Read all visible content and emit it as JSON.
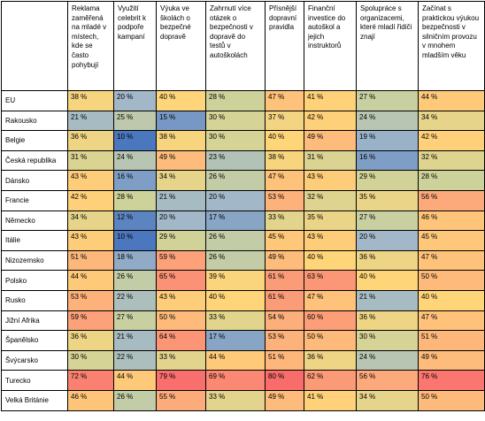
{
  "chart_data": {
    "type": "heatmap",
    "corner_label": "",
    "columns": [
      "Reklama zaměřená na mladé v místech, kde se často pohybují",
      "Využití celebrit k podpoře kampaní",
      "Výuka ve školách o bezpečné dopravě",
      "Zahrnutí více otázek o bezpečnosti v dopravě do testů v autoškolách",
      "Přísnější dopravní pravidla",
      "Finanční investice do autoškol a jejich instruktorů",
      "Spolupráce s organizacemi, které mladí řidiči znají",
      "Začínat s praktickou výukou bezpečnosti v silničním provozu v mnohem mladším věku"
    ],
    "rows": [
      "EU",
      "Rakousko",
      "Belgie",
      "Česká republika",
      "Dánsko",
      "Francie",
      "Německo",
      "Itálie",
      "Nizozemsko",
      "Polsko",
      "Rusko",
      "Jižní Afrika",
      "Španělsko",
      "Švýcarsko",
      "Turecko",
      "Velká Británie"
    ],
    "values": [
      [
        38,
        20,
        40,
        28,
        47,
        41,
        27,
        44
      ],
      [
        21,
        25,
        15,
        30,
        37,
        42,
        24,
        34
      ],
      [
        36,
        10,
        38,
        30,
        40,
        49,
        19,
        42
      ],
      [
        31,
        24,
        49,
        23,
        38,
        31,
        16,
        32
      ],
      [
        43,
        16,
        34,
        26,
        47,
        43,
        29,
        28
      ],
      [
        42,
        28,
        21,
        20,
        53,
        32,
        35,
        56
      ],
      [
        34,
        12,
        20,
        17,
        33,
        35,
        27,
        46
      ],
      [
        43,
        10,
        29,
        26,
        45,
        43,
        20,
        45
      ],
      [
        51,
        18,
        59,
        26,
        49,
        40,
        36,
        47
      ],
      [
        44,
        26,
        65,
        39,
        61,
        63,
        40,
        50
      ],
      [
        53,
        22,
        43,
        40,
        61,
        47,
        21,
        40
      ],
      [
        59,
        27,
        50,
        33,
        54,
        60,
        36,
        47
      ],
      [
        36,
        21,
        64,
        17,
        53,
        50,
        30,
        51
      ],
      [
        30,
        22,
        33,
        44,
        51,
        36,
        24,
        49
      ],
      [
        72,
        44,
        79,
        69,
        80,
        62,
        56,
        76
      ],
      [
        46,
        26,
        55,
        33,
        49,
        41,
        34,
        50
      ]
    ],
    "unit_suffix": " %",
    "color_scale": {
      "stops": [
        "#4b77be",
        "#a2b8c9",
        "#cdd29a",
        "#ffd57a",
        "#fca97b",
        "#f96c6c"
      ],
      "domain": [
        10,
        20,
        28,
        40,
        56,
        80
      ]
    }
  }
}
